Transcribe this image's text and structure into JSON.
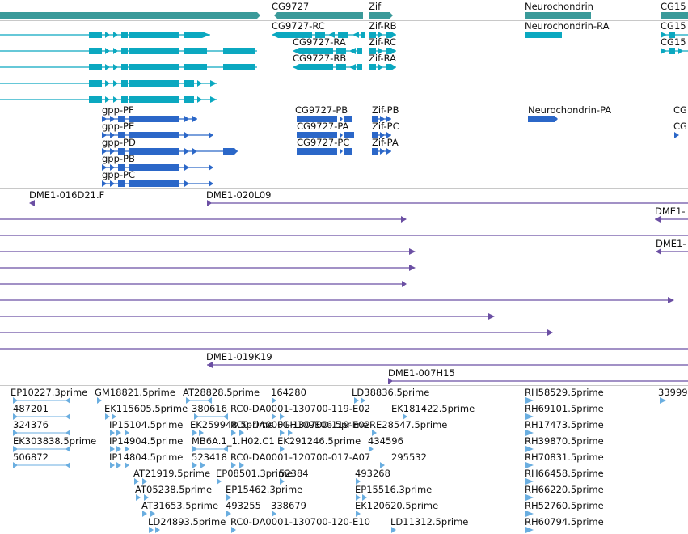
{
  "colors": {
    "gene": "#3a9a9a",
    "transcript": "#0ba8c0",
    "protein": "#2b67c8",
    "clone": "#6b4fa3",
    "est": "#6aaee0",
    "separator": "#c8c8c8"
  },
  "genes": [
    "CG9727",
    "Zif",
    "Neurochondrin",
    "CG15"
  ],
  "transcripts": {
    "gpp": [
      "",
      "",
      "",
      "",
      ""
    ],
    "cg9727": [
      "CG9727-RC",
      "CG9727-RA",
      "CG9727-RB"
    ],
    "zif": [
      "Zif-RB",
      "Zif-RC",
      "Zif-RA"
    ],
    "neurochondrin": [
      "Neurochondrin-RA"
    ],
    "cg15": [
      "CG15",
      "CG15"
    ]
  },
  "proteins": {
    "gpp": [
      "gpp-PF",
      "gpp-PE",
      "gpp-PD",
      "gpp-PB",
      "gpp-PC"
    ],
    "cg9727": [
      "CG9727-PB",
      "CG9727-PA",
      "CG9727-PC"
    ],
    "zif": [
      "Zif-PB",
      "Zif-PC",
      "Zif-PA"
    ],
    "neurochondrin": [
      "Neurochondrin-PA"
    ],
    "cg": [
      "CG",
      "CG"
    ]
  },
  "clones": [
    "DME1-016D21.F",
    "DME1-020L09",
    "DME1-",
    "DME1-",
    "DME1-019K19",
    "DME1-007H15"
  ],
  "ests": [
    "EP10227.3prime",
    "GM18821.5prime",
    "AT28828.5prime",
    "164280",
    "LD38836.5prime",
    "RH58529.5prime",
    "33999",
    "487201",
    "EK115605.5prime",
    "380616",
    "RC0-DA0001-130700-119-E02",
    "EK181422.5prime",
    "RH69101.5prime",
    "324376",
    "IP15104.5prime",
    "EK259948.5prime",
    "RC0-DA0001-130700-119-E02",
    "FGH109E06.5prime",
    "RE28547.5prime",
    "RH17473.5prime",
    "EK303838.5prime",
    "IP14904.5prime",
    "MB6A.1_1.H02.C1",
    "EK291246.5prime",
    "434596",
    "RH39870.5prime",
    "506872",
    "IP14804.5prime",
    "523418",
    "RC0-DA0001-120700-017-A07",
    "295532",
    "RH70831.5prime",
    "AT21919.5prime",
    "EP08501.3prime",
    "52384",
    "493268",
    "RH66458.5prime",
    "AT05238.5prime",
    "EP15462.3prime",
    "EP15516.3prime",
    "RH66220.5prime",
    "AT31653.5prime",
    "493255",
    "338679",
    "EK120620.5prime",
    "RH52760.5prime",
    "LD24893.5prime",
    "RC0-DA0001-130700-120-E10",
    "LD11312.5prime",
    "RH60794.5prime"
  ]
}
